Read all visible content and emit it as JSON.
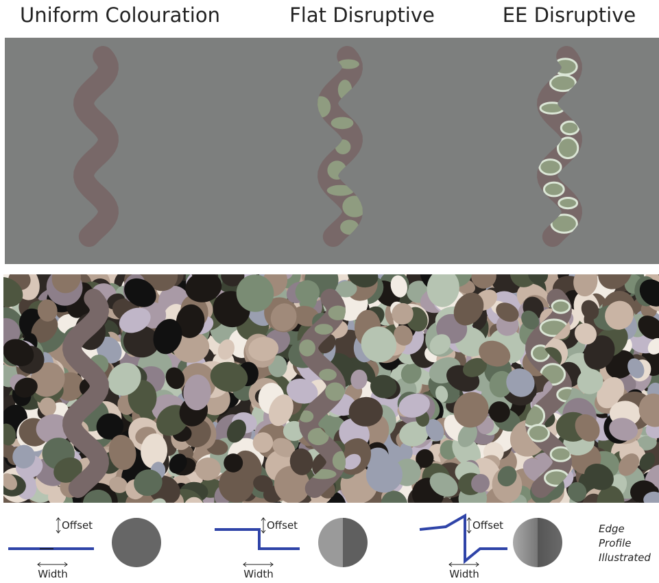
{
  "panels": [
    {
      "title": "Uniform Colouration",
      "offset_label": "Offset",
      "width_label": "Width"
    },
    {
      "title": "Flat Disruptive",
      "offset_label": "Offset",
      "width_label": "Width"
    },
    {
      "title": "EE Disruptive",
      "offset_label": "Offset",
      "width_label": "Width"
    }
  ],
  "note": {
    "lines": [
      "Edge",
      "Profile",
      "Illustrated"
    ]
  }
}
